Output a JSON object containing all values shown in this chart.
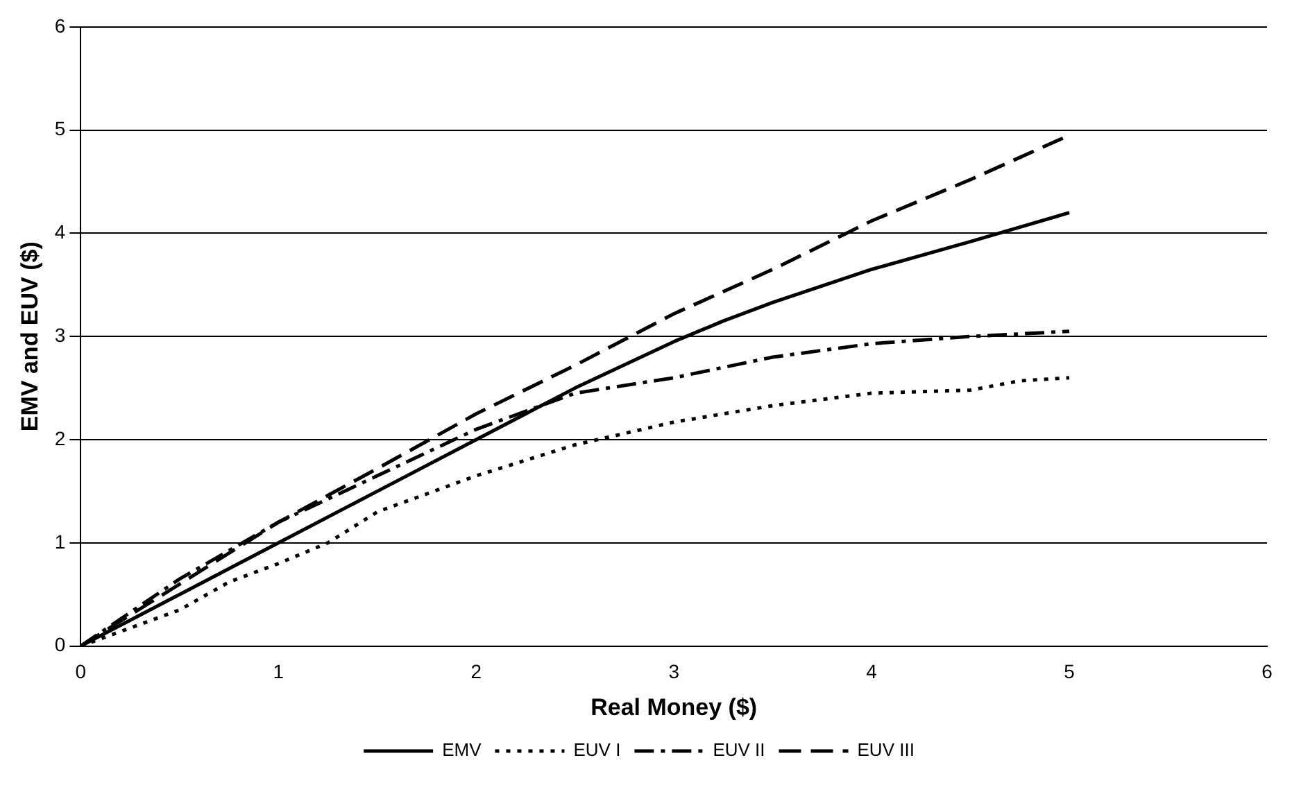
{
  "chart_data": {
    "type": "line",
    "xlabel": "Real Money ($)",
    "ylabel": "EMV and EUV ($)",
    "xlim": [
      0,
      6
    ],
    "xticks": [
      0,
      1,
      2,
      3,
      4,
      5,
      6
    ],
    "ylim": [
      0,
      6
    ],
    "yticks": [
      0,
      1,
      2,
      3,
      4,
      5,
      6
    ],
    "grid": "y",
    "legend": "bottom",
    "marker": "none",
    "series": [
      {
        "name": "EMV",
        "color": "#000000",
        "line_style": "solid",
        "x": [
          0,
          0.5,
          1,
          1.5,
          2,
          2.5,
          3,
          3.25,
          3.5,
          4,
          4.5,
          5
        ],
        "values": [
          0,
          0.5,
          1,
          1.5,
          2,
          2.5,
          2.95,
          3.15,
          3.33,
          3.65,
          3.92,
          4.2
        ]
      },
      {
        "name": "EUV I",
        "color": "#000000",
        "line_style": "dotted",
        "x": [
          0,
          0.5,
          0.75,
          1,
          1.25,
          1.5,
          2,
          2.5,
          3,
          3.5,
          4,
          4.5,
          4.75,
          5
        ],
        "values": [
          0,
          0.35,
          0.62,
          0.8,
          1,
          1.3,
          1.65,
          1.95,
          2.17,
          2.33,
          2.45,
          2.48,
          2.57,
          2.6
        ]
      },
      {
        "name": "EUV II",
        "color": "#000000",
        "line_style": "dashed",
        "x": [
          0,
          0.5,
          1,
          1.5,
          2,
          2.5,
          3,
          3.5,
          4,
          4.5,
          5
        ],
        "values": [
          0,
          0.65,
          1.2,
          1.65,
          2.1,
          2.45,
          2.6,
          2.8,
          2.93,
          3,
          3.05
        ]
      },
      {
        "name": "EUV III",
        "color": "#000000",
        "line_style": "dashed",
        "x": [
          0,
          0.5,
          1,
          1.5,
          2,
          2.5,
          3,
          3.5,
          4,
          4.5,
          5
        ],
        "values": [
          0,
          0.6,
          1.2,
          1.72,
          2.25,
          2.72,
          3.22,
          3.65,
          4.12,
          4.52,
          4.95
        ]
      }
    ]
  }
}
